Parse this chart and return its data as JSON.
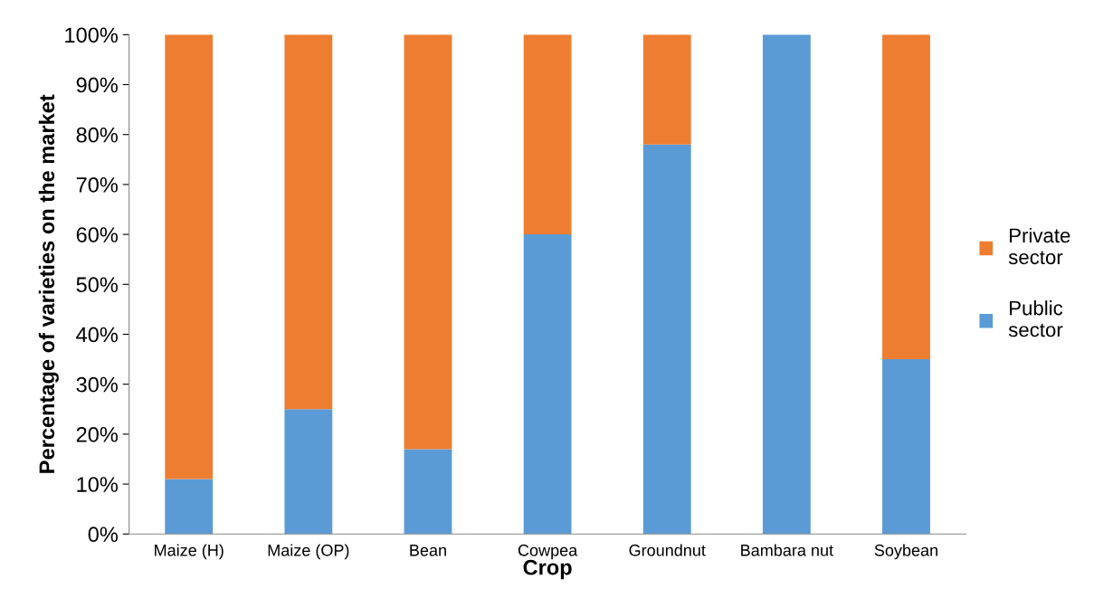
{
  "chart_data": {
    "type": "bar",
    "stacked": true,
    "xlabel": "Crop",
    "ylabel": "Percentage of varieties on the market",
    "categories": [
      "Maize (H)",
      "Maize (OP)",
      "Bean",
      "Cowpea",
      "Groundnut",
      "Bambara nut",
      "Soybean"
    ],
    "series": [
      {
        "name": "Public sector",
        "color": "#5b9bd5",
        "values": [
          11,
          25,
          17,
          60,
          78,
          100,
          35
        ]
      },
      {
        "name": "Private sector",
        "color": "#ed7d31",
        "values": [
          89,
          75,
          83,
          40,
          22,
          0,
          65
        ]
      }
    ],
    "ylim": [
      0,
      100
    ],
    "yticks": [
      {
        "value": 0,
        "label": "0%"
      },
      {
        "value": 10,
        "label": "10%"
      },
      {
        "value": 20,
        "label": "20%"
      },
      {
        "value": 30,
        "label": "30%"
      },
      {
        "value": 40,
        "label": "40%"
      },
      {
        "value": 50,
        "label": "50%"
      },
      {
        "value": 60,
        "label": "60%"
      },
      {
        "value": 70,
        "label": "70%"
      },
      {
        "value": 80,
        "label": "80%"
      },
      {
        "value": 90,
        "label": "90%"
      },
      {
        "value": 100,
        "label": "100%"
      }
    ],
    "grid": false,
    "legend": "right"
  }
}
